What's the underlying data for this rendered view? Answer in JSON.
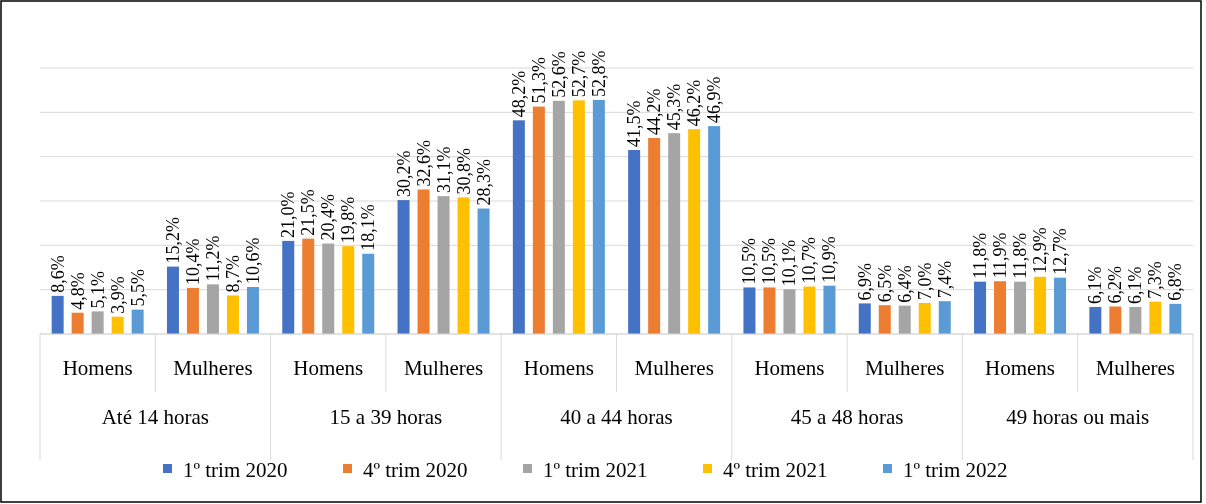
{
  "chart_data": {
    "type": "bar",
    "categories": [
      "Homens",
      "Mulheres",
      "Homens",
      "Mulheres",
      "Homens",
      "Mulheres",
      "Homens",
      "Mulheres",
      "Homens",
      "Mulheres"
    ],
    "annotations": [
      "Até 14 horas",
      "15 a 39 horas",
      "40 a 44 horas",
      "45 a 48 horas",
      "49 horas ou mais"
    ],
    "series": [
      {
        "name": "1º trim 2020",
        "color": "#4472c4",
        "values": [
          8.6,
          15.2,
          21.0,
          30.2,
          48.2,
          41.5,
          10.5,
          6.9,
          11.8,
          6.1
        ],
        "value_labels": [
          "8,6%",
          "15,2%",
          "21,0%",
          "30,2%",
          "48,2%",
          "41,5%",
          "10,5%",
          "6,9%",
          "11,8%",
          "6,1%"
        ]
      },
      {
        "name": "4º trim 2020",
        "color": "#ed7d31",
        "values": [
          4.8,
          10.4,
          21.5,
          32.6,
          51.3,
          44.2,
          10.5,
          6.5,
          11.9,
          6.2
        ],
        "value_labels": [
          "4,8%",
          "10,4%",
          "21,5%",
          "32,6%",
          "51,3%",
          "44,2%",
          "10,5%",
          "6,5%",
          "11,9%",
          "6,2%"
        ]
      },
      {
        "name": "1º trim 2021",
        "color": "#a5a5a5",
        "values": [
          5.1,
          11.2,
          20.4,
          31.1,
          52.6,
          45.3,
          10.1,
          6.4,
          11.8,
          6.1
        ],
        "value_labels": [
          "5,1%",
          "11,2%",
          "20,4%",
          "31,1%",
          "52,6%",
          "45,3%",
          "10,1%",
          "6,4%",
          "11,8%",
          "6,1%"
        ]
      },
      {
        "name": "4º trim 2021",
        "color": "#ffc000",
        "values": [
          3.9,
          8.7,
          19.8,
          30.8,
          52.7,
          46.2,
          10.7,
          7.0,
          12.9,
          7.3
        ],
        "value_labels": [
          "3,9%",
          "8,7%",
          "19,8%",
          "30,8%",
          "52,7%",
          "46,2%",
          "10,7%",
          "7,0%",
          "12,9%",
          "7,3%"
        ]
      },
      {
        "name": "1º trim 2022",
        "color": "#5b9bd5",
        "values": [
          5.5,
          10.6,
          18.1,
          28.3,
          52.8,
          46.9,
          10.9,
          7.4,
          12.7,
          6.8
        ],
        "value_labels": [
          "5,5%",
          "10,6%",
          "18,1%",
          "28,3%",
          "52,8%",
          "46,9%",
          "10,9%",
          "7,4%",
          "12,7%",
          "6,8%"
        ]
      }
    ],
    "ylim": [
      0,
      60
    ],
    "yticks": [
      {
        "value": 0,
        "label": null
      },
      {
        "value": 10,
        "label": null
      },
      {
        "value": 20,
        "label": null
      },
      {
        "value": 30,
        "label": null
      },
      {
        "value": 40,
        "label": null
      },
      {
        "value": 50,
        "label": null
      },
      {
        "value": 60,
        "label": null
      }
    ],
    "tick_labels": "x",
    "grid": "y",
    "legend": "bottom"
  }
}
